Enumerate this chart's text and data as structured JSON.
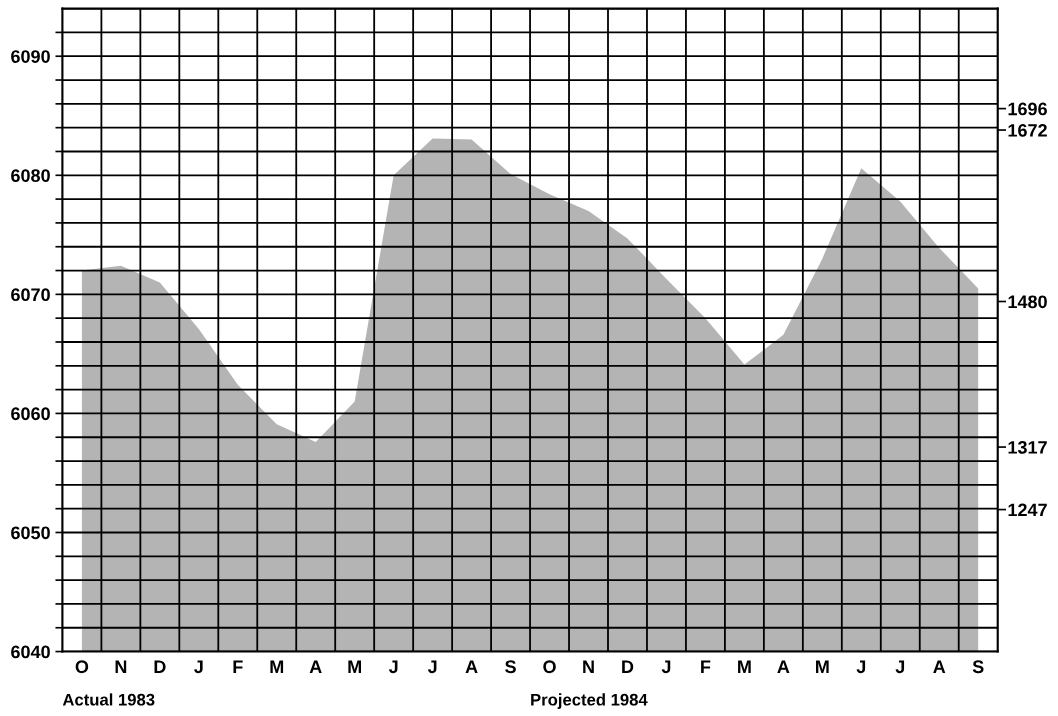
{
  "chart_data": {
    "type": "area",
    "categories": [
      "O",
      "N",
      "D",
      "J",
      "F",
      "M",
      "A",
      "M",
      "J",
      "J",
      "A",
      "S",
      "O",
      "N",
      "D",
      "J",
      "F",
      "M",
      "A",
      "M",
      "J",
      "J",
      "A",
      "S"
    ],
    "series": [
      {
        "color": "#b4b4b4",
        "values": [
          6072,
          6072.4,
          6071,
          6067.1,
          6062.4,
          6059.1,
          6057.6,
          6061,
          6080,
          6083.1,
          6083,
          6080.1,
          6078.4,
          6077,
          6074.7,
          6071.3,
          6068,
          6064.1,
          6066.6,
          6073,
          6080.6,
          6077.8,
          6073.9,
          6070.5
        ]
      }
    ],
    "ylim": [
      6040,
      6094
    ],
    "yticks": [
      6040,
      {
        "value": 6042,
        "label": null
      },
      {
        "value": 6044,
        "label": null
      },
      {
        "value": 6046,
        "label": null
      },
      {
        "value": 6048,
        "label": null
      },
      6050,
      {
        "value": 6052,
        "label": null
      },
      {
        "value": 6054,
        "label": null
      },
      {
        "value": 6056,
        "label": null
      },
      {
        "value": 6058,
        "label": null
      },
      6060,
      {
        "value": 6062,
        "label": null
      },
      {
        "value": 6064,
        "label": null
      },
      {
        "value": 6066,
        "label": null
      },
      {
        "value": 6068,
        "label": null
      },
      6070,
      {
        "value": 6072,
        "label": null
      },
      {
        "value": 6074,
        "label": null
      },
      {
        "value": 6076,
        "label": null
      },
      {
        "value": 6078,
        "label": null
      },
      6080,
      {
        "value": 6082,
        "label": null
      },
      {
        "value": 6084,
        "label": null
      },
      {
        "value": 6086,
        "label": null
      },
      {
        "value": 6088,
        "label": null
      },
      6090,
      {
        "value": 6092,
        "label": null
      }
    ],
    "y2lim": [
      1088,
      1808
    ],
    "y2ticks": [
      1696,
      1672,
      1480,
      1317,
      1247
    ],
    "grid": true,
    "annotations": [
      "Actual 1983",
      "Projected 1984"
    ]
  }
}
